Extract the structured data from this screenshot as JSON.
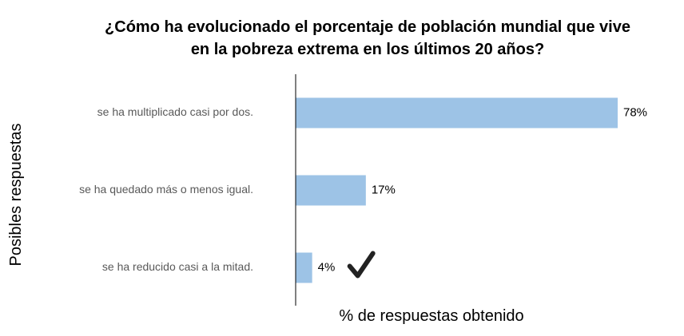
{
  "title": {
    "line1": "¿Cómo ha evolucionado el porcentaje de población mundial que vive",
    "line2": "en la pobreza extrema en los últimos 20 años?"
  },
  "chart_data": {
    "type": "bar",
    "orientation": "horizontal",
    "title": "¿Cómo ha evolucionado el porcentaje de población mundial que vive en la pobreza extrema en los últimos 20 años?",
    "xlabel": "% de respuestas obtenido",
    "ylabel": "Posibles respuestas",
    "categories": [
      "se ha multiplicado casi por dos.",
      "se ha quedado más o menos igual.",
      "se ha reducido casi a la mitad."
    ],
    "values": [
      78,
      17,
      4
    ],
    "value_labels": [
      "78%",
      "17%",
      "4%"
    ],
    "xlim": [
      0,
      78
    ],
    "grid": false,
    "legend": "none",
    "bar_color": "#9DC3E6",
    "axis_color": "#000000",
    "correct_answer_marker": {
      "category": "se ha reducido casi a la mitad.",
      "icon": "checkmark-icon",
      "color": "#222222"
    }
  }
}
